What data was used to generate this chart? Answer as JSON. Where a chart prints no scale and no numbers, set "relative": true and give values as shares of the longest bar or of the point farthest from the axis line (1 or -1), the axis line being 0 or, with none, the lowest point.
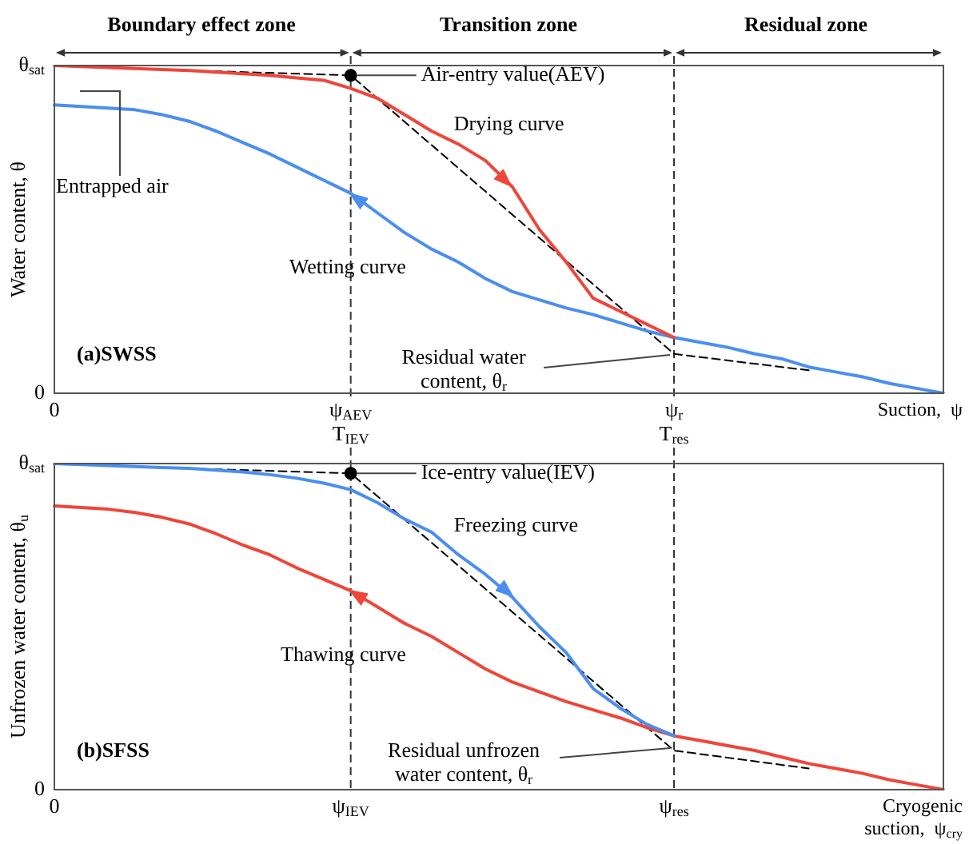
{
  "chart_data": [
    {
      "type": "line",
      "relative": true,
      "ylabel": "Water content, θ",
      "xlabel": "Suction,  ψ",
      "categories": [
        "0",
        null,
        null,
        null,
        null,
        null,
        null,
        null,
        null,
        null,
        null,
        "ψ$_{AEV}$\nT$_{IEV}$",
        null,
        null,
        null,
        null,
        null,
        null,
        null,
        null,
        null,
        null,
        null,
        "ψ$_{r}$\nT$_{res}$",
        null,
        null,
        null,
        null,
        null,
        null,
        null,
        null,
        null,
        null
      ],
      "legend": false,
      "marker": "none",
      "series": [
        {
          "name": "Drying curve",
          "color": "#f0453a",
          "values": [
            1.0,
            0.997,
            0.994,
            0.991,
            0.988,
            0.985,
            0.98,
            0.975,
            0.97,
            0.962,
            0.955,
            0.93,
            0.9,
            0.85,
            0.8,
            0.76,
            0.71,
            0.63,
            0.5,
            0.4,
            0.29,
            0.25,
            0.21,
            0.17,
            null,
            null,
            null,
            null,
            null,
            null,
            null,
            null,
            null,
            null
          ]
        },
        {
          "name": "Wetting curve",
          "color": "#4a8ef0",
          "values": [
            0.88,
            0.875,
            0.87,
            0.865,
            0.85,
            0.83,
            0.8,
            0.765,
            0.73,
            0.69,
            0.65,
            0.61,
            0.55,
            0.49,
            0.44,
            0.4,
            0.35,
            0.31,
            0.285,
            0.26,
            0.24,
            0.215,
            0.19,
            0.17,
            0.155,
            0.14,
            0.12,
            0.105,
            0.08,
            0.065,
            0.05,
            0.03,
            0.015,
            0
          ]
        },
        {
          "color": "#000000",
          "line_style": "dashed",
          "values": [
            null,
            null,
            null,
            null,
            null,
            0.985,
            null,
            null,
            null,
            null,
            null,
            0.97,
            null,
            null,
            null,
            null,
            null,
            null,
            null,
            null,
            null,
            null,
            null,
            0.12,
            null,
            null,
            null,
            null,
            0.07,
            null,
            null,
            null,
            null,
            null
          ]
        },
        {
          "type": "scatter",
          "color": "#000000",
          "marker": "circle",
          "values": [
            null,
            null,
            null,
            null,
            null,
            null,
            null,
            null,
            null,
            null,
            null,
            0.97,
            null,
            null,
            null,
            null,
            null,
            null,
            null,
            null,
            null,
            null,
            null,
            null,
            null,
            null,
            null,
            null,
            null,
            null,
            null,
            null,
            null,
            null
          ]
        }
      ],
      "ref_lines": [
        {
          "axis": "x",
          "value": "ψ$_{AEV}$\nT$_{IEV}$",
          "line_style": "dashed"
        },
        {
          "axis": "x",
          "value": "ψ$_{r}$\nT$_{res}$",
          "line_style": "dashed"
        }
      ],
      "annotations": [
        "(a)SWSS",
        {
          "text": "Air-entry value(AEV)",
          "x": "ψ$_{AEV}$\nT$_{IEV}$",
          "y": 0.97
        },
        "Residual water\ncontent, θ$_{r}$",
        "Entrapped air",
        "Boundary effect zone",
        "Transition zone",
        "Residual zone",
        "θ$_{sat}$",
        "0"
      ]
    },
    {
      "type": "line",
      "relative": true,
      "ylabel": "Unfrozen water content, θ$_{u}$",
      "xlabel": "Cryogenic\nsuction,  ψ$_{cry}$",
      "categories": [
        "0",
        null,
        null,
        null,
        null,
        null,
        null,
        null,
        null,
        null,
        null,
        "ψ$_{IEV}$",
        null,
        null,
        null,
        null,
        null,
        null,
        null,
        null,
        null,
        null,
        null,
        "ψ$_{res}$",
        null,
        null,
        null,
        null,
        null,
        null,
        null,
        null,
        null,
        null
      ],
      "legend": false,
      "marker": "none",
      "series": [
        {
          "name": "Freezing curve",
          "color": "#4a8ef0",
          "values": [
            1.0,
            0.997,
            0.994,
            0.991,
            0.988,
            0.985,
            0.98,
            0.974,
            0.966,
            0.955,
            0.94,
            0.92,
            0.88,
            0.83,
            0.79,
            0.72,
            0.66,
            0.59,
            0.5,
            0.42,
            0.31,
            0.25,
            0.2,
            0.165,
            null,
            null,
            null,
            null,
            null,
            null,
            null,
            null,
            null,
            null
          ]
        },
        {
          "name": "Thawing curve",
          "color": "#f0453a",
          "values": [
            0.87,
            0.865,
            0.86,
            0.85,
            0.835,
            0.815,
            0.785,
            0.75,
            0.72,
            0.68,
            0.645,
            0.61,
            0.56,
            0.51,
            0.47,
            0.42,
            0.37,
            0.33,
            0.3,
            0.27,
            0.245,
            0.22,
            0.19,
            0.165,
            0.15,
            0.135,
            0.12,
            0.1,
            0.08,
            0.065,
            0.05,
            0.03,
            0.015,
            0
          ]
        },
        {
          "color": "#000000",
          "line_style": "dashed",
          "values": [
            null,
            null,
            null,
            null,
            null,
            0.985,
            null,
            null,
            null,
            null,
            null,
            0.97,
            null,
            null,
            null,
            null,
            null,
            null,
            null,
            null,
            null,
            null,
            null,
            0.12,
            null,
            null,
            null,
            null,
            0.065,
            null,
            null,
            null,
            null,
            null
          ]
        },
        {
          "type": "scatter",
          "color": "#000000",
          "marker": "circle",
          "values": [
            null,
            null,
            null,
            null,
            null,
            null,
            null,
            null,
            null,
            null,
            null,
            0.97,
            null,
            null,
            null,
            null,
            null,
            null,
            null,
            null,
            null,
            null,
            null,
            null,
            null,
            null,
            null,
            null,
            null,
            null,
            null,
            null,
            null,
            null
          ]
        }
      ],
      "ref_lines": [
        {
          "axis": "x",
          "value": "ψ$_{IEV}$",
          "line_style": "dashed"
        },
        {
          "axis": "x",
          "value": "ψ$_{res}$",
          "line_style": "dashed"
        }
      ],
      "annotations": [
        "(b)SFSS",
        {
          "text": "Ice-entry value(IEV)",
          "x": "ψ$_{IEV}$",
          "y": 0.97
        },
        "Residual unfrozen\nwater content, θ$_{r}$",
        "θ$_{sat}$",
        "0"
      ]
    }
  ]
}
